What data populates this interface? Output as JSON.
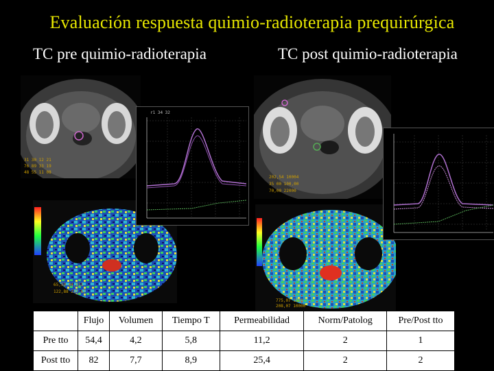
{
  "title": "Evaluación respuesta quimio-radioterapia prequirúrgica",
  "subtitles": {
    "pre": "TC pre quimio-radioterapia",
    "post": "TC post quimio-radioterapia"
  },
  "table": {
    "headers": [
      "",
      "Flujo",
      "Volumen",
      "Tiempo T",
      "Permeabilidad",
      "Norm/Patolog",
      "Pre/Post tto"
    ],
    "rows": [
      [
        "Pre tto",
        "54,4",
        "4,2",
        "5,8",
        "11,2",
        "2",
        "1"
      ],
      [
        "Post tto",
        "82",
        "7,7",
        "8,9",
        "25,4",
        "2",
        "2"
      ]
    ]
  },
  "colors": {
    "title": "#e8e800",
    "subtitle": "#ffffff",
    "curve_main": "#b070d0",
    "curve_reference": "#55aa55"
  }
}
